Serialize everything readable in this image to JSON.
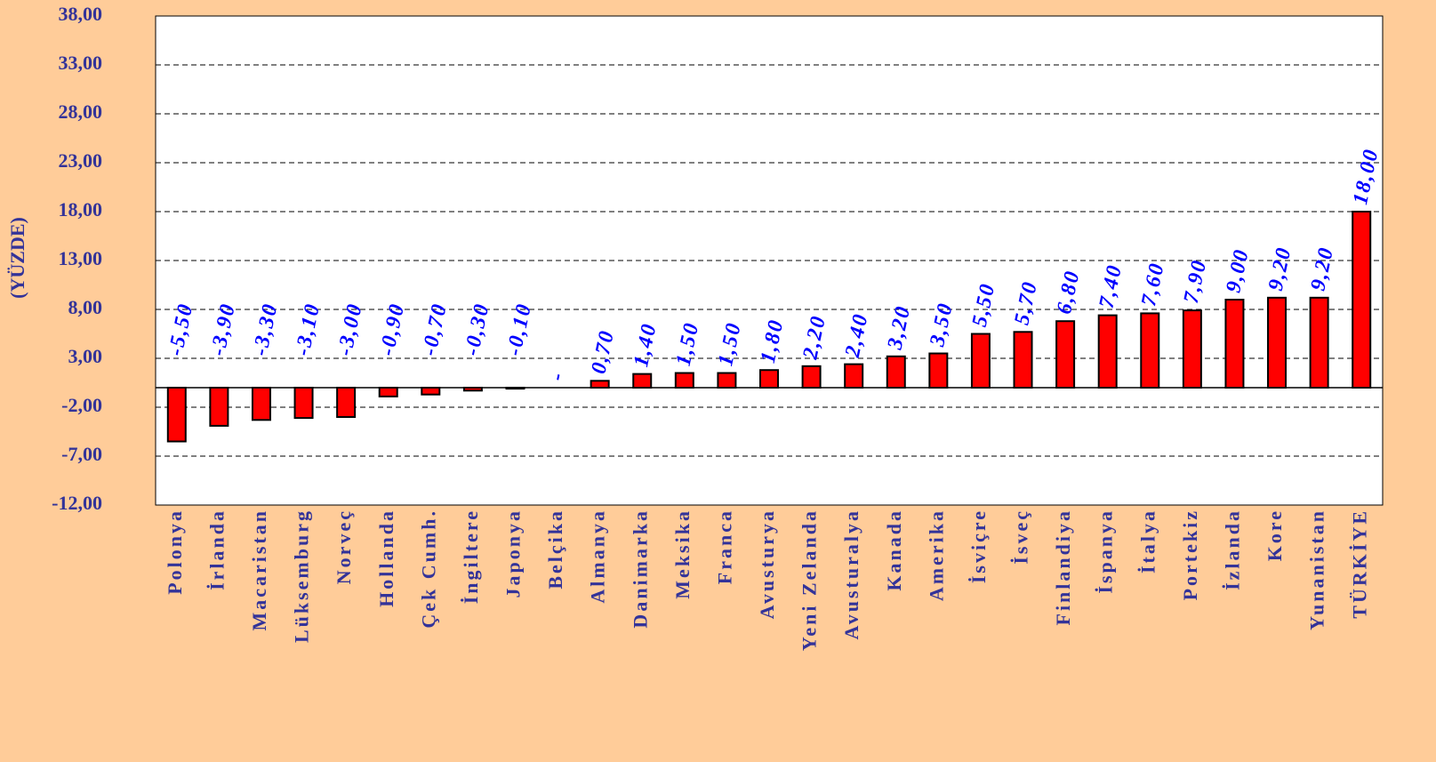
{
  "chart_data": {
    "type": "bar",
    "y_axis_label": "(YÜZDE)",
    "categories": [
      "Polonya",
      "İrlanda",
      "Macaristan",
      "Lüksemburg",
      "Norveç",
      "Hollanda",
      "Çek Cumh.",
      "İngiltere",
      "Japonya",
      "Belçika",
      "Almanya",
      "Danimarka",
      "Meksika",
      "Franca",
      "Avusturya",
      "Yeni Zelanda",
      "Avusturalya",
      "Kanada",
      "Amerika",
      "İsviçre",
      "İsveç",
      "Finlandiya",
      "İspanya",
      "İtalya",
      "Portekiz",
      "İzlanda",
      "Kore",
      "Yunanistan",
      "TÜRKİYE"
    ],
    "values": [
      -5.5,
      -3.9,
      -3.3,
      -3.1,
      -3.0,
      -0.9,
      -0.7,
      -0.3,
      -0.1,
      0,
      0.7,
      1.4,
      1.5,
      1.5,
      1.8,
      2.2,
      2.4,
      3.2,
      3.5,
      5.5,
      5.7,
      6.8,
      7.4,
      7.6,
      7.9,
      9.0,
      9.2,
      9.2,
      18.0
    ],
    "value_labels": [
      "-5,50",
      "-3,90",
      "-3,30",
      "-3,10",
      "-3,00",
      "-0,90",
      "-0,70",
      "-0,30",
      "-0,10",
      "-",
      "0,70",
      "1,40",
      "1,50",
      "1,50",
      "1,80",
      "2,20",
      "2,40",
      "3,20",
      "3,50",
      "5,50",
      "5,70",
      "6,80",
      "7,40",
      "7,60",
      "7,90",
      "9,00",
      "9,20",
      "9,20",
      "18,00"
    ],
    "color": "#ff0000",
    "ylim": [
      -12,
      38
    ],
    "yticks": [
      {
        "value": -12,
        "label": "-12,00"
      },
      {
        "value": -7,
        "label": "-7,00"
      },
      {
        "value": -2,
        "label": "-2,00"
      },
      {
        "value": 3,
        "label": "3,00"
      },
      {
        "value": 8,
        "label": "8,00"
      },
      {
        "value": 13,
        "label": "13,00"
      },
      {
        "value": 18,
        "label": "18,00"
      },
      {
        "value": 23,
        "label": "23,00"
      },
      {
        "value": 28,
        "label": "28,00"
      },
      {
        "value": 33,
        "label": "33,00"
      },
      {
        "value": 38,
        "label": "38,00"
      }
    ],
    "grid": true
  }
}
